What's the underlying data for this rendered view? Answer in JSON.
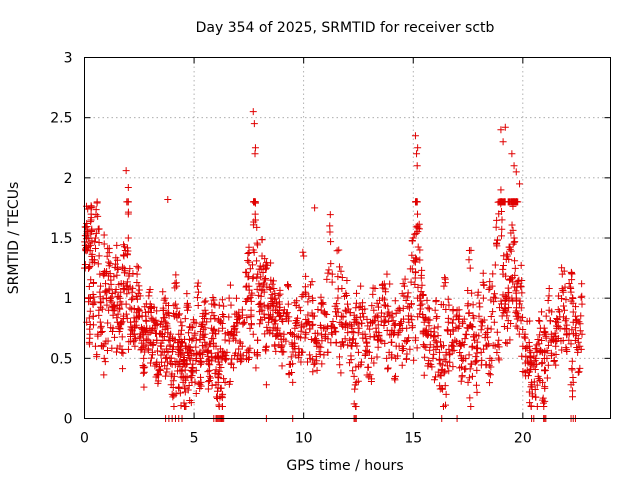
{
  "chart_data": {
    "type": "scatter",
    "title": "Day 354 of 2025, SRMTID for receiver sctb",
    "xlabel": "GPS time / hours",
    "ylabel": "SRMTID / TECUs",
    "xlim": [
      0,
      24
    ],
    "ylim": [
      0,
      3
    ],
    "xticks": [
      0,
      5,
      10,
      15,
      20
    ],
    "xtick_labels": [
      "0",
      "5",
      "10",
      "15",
      "20"
    ],
    "yticks": [
      0,
      0.5,
      1,
      1.5,
      2,
      2.5,
      3
    ],
    "ytick_labels": [
      "0",
      "0.5",
      "1",
      "1.5",
      "2",
      "2.5",
      "3"
    ],
    "grid": true,
    "marker": "+",
    "marker_color": "#e00000",
    "series": [
      {
        "name": "SRMTID",
        "x": [
          0.0,
          0.05,
          0.1,
          0.15,
          0.2,
          0.25,
          0.3,
          0.35,
          0.4,
          0.5,
          0.6,
          0.7,
          0.8,
          0.9,
          1.0,
          1.1,
          1.2,
          1.3,
          1.4,
          1.5,
          1.6,
          1.7,
          1.8,
          1.9,
          2.0,
          2.1,
          2.2,
          2.3,
          2.4,
          2.5,
          2.6,
          2.7,
          2.8,
          2.9,
          3.0,
          3.1,
          3.2,
          3.3,
          3.4,
          3.5,
          3.6,
          3.7,
          3.8,
          3.9,
          4.0,
          4.1,
          4.2,
          4.3,
          4.4,
          4.5,
          4.6,
          4.7,
          4.8,
          4.9,
          5.0,
          5.1,
          5.2,
          5.3,
          5.4,
          5.5,
          5.6,
          5.7,
          5.8,
          5.9,
          6.0,
          6.2,
          6.4,
          6.6,
          6.8,
          7.0,
          7.2,
          7.4,
          7.5,
          7.6,
          7.7,
          7.8,
          7.9,
          8.0,
          8.1,
          8.2,
          8.3,
          8.4,
          8.5,
          8.6,
          8.7,
          8.8,
          8.9,
          9.0,
          9.2,
          9.4,
          9.6,
          9.8,
          10.0,
          10.2,
          10.4,
          10.6,
          10.8,
          11.0,
          11.2,
          11.4,
          11.6,
          11.8,
          12.0,
          12.2,
          12.4,
          12.6,
          12.8,
          13.0,
          13.2,
          13.4,
          13.6,
          13.8,
          14.0,
          14.2,
          14.4,
          14.6,
          14.8,
          15.0,
          15.1,
          15.2,
          15.3,
          15.4,
          15.5,
          15.6,
          15.8,
          16.0,
          16.2,
          16.4,
          16.6,
          16.8,
          17.0,
          17.2,
          17.4,
          17.6,
          17.8,
          18.0,
          18.2,
          18.4,
          18.6,
          18.8,
          18.9,
          19.0,
          19.1,
          19.2,
          19.3,
          19.4,
          19.5,
          19.6,
          19.7,
          19.8,
          20.0,
          20.2,
          20.4,
          20.6,
          20.8,
          21.0,
          21.2,
          21.4,
          21.6,
          21.8,
          22.0,
          22.2,
          22.4,
          22.6,
          22.7,
          0.1,
          0.3,
          0.5,
          0.7,
          0.9,
          1.1,
          1.3,
          1.5,
          1.7,
          1.9,
          2.1,
          2.3,
          2.5,
          2.7,
          2.9,
          3.1,
          3.3,
          3.5,
          3.7,
          3.9,
          4.1,
          4.3,
          4.5,
          4.7,
          4.9,
          5.1,
          5.3,
          5.5,
          5.7,
          5.9,
          6.1,
          6.3,
          6.5,
          6.7,
          6.9,
          7.1,
          7.3,
          7.5,
          7.7,
          7.9,
          8.1,
          8.3,
          8.5,
          8.7,
          8.9,
          9.1,
          9.3,
          9.5,
          9.7,
          9.9,
          10.1,
          10.3,
          10.5,
          10.7,
          10.9,
          11.1,
          11.3,
          11.5,
          11.7,
          11.9,
          12.1,
          12.3,
          12.5,
          12.7,
          12.9,
          13.1,
          13.3,
          13.5,
          13.7,
          13.9,
          14.1,
          14.3,
          14.5,
          14.7,
          14.9,
          15.1,
          15.3,
          15.5,
          15.7,
          15.9,
          16.1,
          16.3,
          16.5,
          16.7,
          16.9,
          17.1,
          17.3,
          17.5,
          17.7,
          17.9,
          18.1,
          18.3,
          18.5,
          18.7,
          18.9,
          19.1,
          19.3,
          19.5,
          19.7,
          19.9,
          20.1,
          20.3,
          20.5,
          20.7,
          20.9,
          21.1,
          21.3,
          21.5,
          21.7,
          21.9,
          22.1,
          22.3,
          22.5,
          22.7,
          7.7,
          7.75,
          7.8,
          7.78,
          15.1,
          15.15,
          15.2,
          15.18,
          19.0,
          19.1,
          19.2,
          19.5,
          19.6,
          19.7,
          19.85,
          1.9,
          2.0,
          3.8,
          10.5,
          4.0,
          4.3,
          4.5,
          4.6,
          4.8,
          6.0,
          6.1,
          6.2,
          6.3,
          8.3,
          9.5,
          12.3,
          12.4,
          16.3,
          16.5,
          17.5,
          17.7,
          20.3,
          20.4,
          20.9,
          21.0,
          22.2,
          22.3
        ],
        "y": [
          1.25,
          1.4,
          1.62,
          1.55,
          1.0,
          0.7,
          1.75,
          1.3,
          0.85,
          1.5,
          1.68,
          1.2,
          0.6,
          1.45,
          1.0,
          1.3,
          1.15,
          0.9,
          1.05,
          1.25,
          0.75,
          0.95,
          1.35,
          1.1,
          1.5,
          0.8,
          1.0,
          0.65,
          1.2,
          0.9,
          0.75,
          0.6,
          0.85,
          0.7,
          0.95,
          0.55,
          0.8,
          0.65,
          0.4,
          0.7,
          0.9,
          0.5,
          0.75,
          0.6,
          0.45,
          0.85,
          1.1,
          0.55,
          0.7,
          0.35,
          0.6,
          0.9,
          0.5,
          0.3,
          0.8,
          0.65,
          1.05,
          0.45,
          0.7,
          0.9,
          0.55,
          0.4,
          0.75,
          0.95,
          0.6,
          0.8,
          0.5,
          1.0,
          0.7,
          0.85,
          0.6,
          1.1,
          1.3,
          0.9,
          1.4,
          1.65,
          1.2,
          0.95,
          1.35,
          1.05,
          1.25,
          0.8,
          1.15,
          0.9,
          1.0,
          0.7,
          0.95,
          0.6,
          0.85,
          0.45,
          0.75,
          0.55,
          1.35,
          0.8,
          1.0,
          0.6,
          0.9,
          0.7,
          1.55,
          0.75,
          1.4,
          0.85,
          0.95,
          0.6,
          0.8,
          1.1,
          0.7,
          0.55,
          0.9,
          0.65,
          1.0,
          1.2,
          0.7,
          0.5,
          0.9,
          1.1,
          0.8,
          1.5,
          1.3,
          1.6,
          1.4,
          0.95,
          0.6,
          0.7,
          0.45,
          0.9,
          0.55,
          1.1,
          0.8,
          0.6,
          0.9,
          0.5,
          0.7,
          1.25,
          0.65,
          0.85,
          1.0,
          0.75,
          1.1,
          1.45,
          1.7,
          1.9,
          1.2,
          0.95,
          1.35,
          1.15,
          1.8,
          1.5,
          1.0,
          0.85,
          0.6,
          0.4,
          0.3,
          0.5,
          0.75,
          0.55,
          0.9,
          0.65,
          0.8,
          1.2,
          0.7,
          1.05,
          0.85,
          0.6,
          0.95,
          0.8,
          1.65,
          0.6,
          1.05,
          0.5,
          0.9,
          0.75,
          0.8,
          0.55,
          0.95,
          0.7,
          0.6,
          0.85,
          0.5,
          0.65,
          0.75,
          0.45,
          0.6,
          0.8,
          0.5,
          0.35,
          0.7,
          0.45,
          0.55,
          0.65,
          0.4,
          0.5,
          0.7,
          0.35,
          0.6,
          0.5,
          0.75,
          0.55,
          0.45,
          0.65,
          0.5,
          0.8,
          0.55,
          0.7,
          0.65,
          0.9,
          0.6,
          1.0,
          0.75,
          0.85,
          0.7,
          0.95,
          0.6,
          0.8,
          0.55,
          0.7,
          0.5,
          0.65,
          0.6,
          0.75,
          0.55,
          0.7,
          0.85,
          0.6,
          0.9,
          0.65,
          0.8,
          0.55,
          0.7,
          0.6,
          0.5,
          0.75,
          0.65,
          0.8,
          0.55,
          0.7,
          0.9,
          0.6,
          0.75,
          0.85,
          0.65,
          1.0,
          0.8,
          0.7,
          0.5,
          0.6,
          0.4,
          0.55,
          0.7,
          0.65,
          0.85,
          0.5,
          0.75,
          0.6,
          0.4,
          0.55,
          0.7,
          0.5,
          0.8,
          0.65,
          0.9,
          0.75,
          1.0,
          0.85,
          1.1,
          0.7,
          0.6,
          0.45,
          0.35,
          0.55,
          0.5,
          0.7,
          0.6,
          0.75,
          0.9,
          0.65,
          0.8,
          0.55,
          0.7,
          2.55,
          2.45,
          2.25,
          2.2,
          2.35,
          2.2,
          2.25,
          2.1,
          2.4,
          2.3,
          2.42,
          2.2,
          2.1,
          2.05,
          1.95,
          2.06,
          1.92,
          1.82,
          1.75,
          0.2,
          0.25,
          0.3,
          0.22,
          0.15,
          0.28,
          0.3,
          0.25,
          0.2,
          0.28,
          0.3,
          0.35,
          0.3,
          0.25,
          0.2,
          0.3,
          0.35,
          0.22,
          0.28,
          0.3,
          0.25,
          0.28,
          0.3
        ],
        "zero_floor_x": [
          3.7,
          3.85,
          4.0,
          4.15,
          4.3,
          4.45,
          5.9,
          6.0,
          6.05,
          6.1,
          6.15,
          6.2,
          6.25,
          6.3,
          6.35,
          8.3,
          9.5,
          12.3,
          12.35,
          12.4,
          16.3,
          17.0,
          20.4,
          20.5,
          20.95,
          21.0,
          21.05,
          22.2,
          22.3,
          22.4
        ]
      }
    ]
  }
}
